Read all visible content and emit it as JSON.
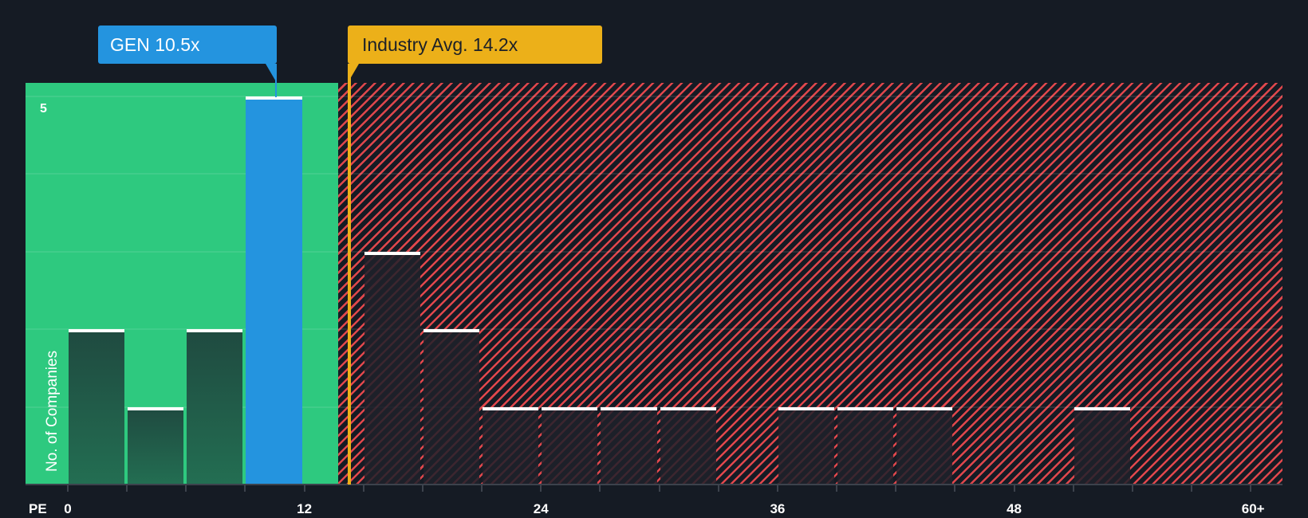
{
  "chart_data": {
    "type": "bar",
    "title": "",
    "xlabel": "PE",
    "ylabel": "No. of Companies",
    "x_tick_labels": [
      "0",
      "12",
      "24",
      "36",
      "48",
      "60+"
    ],
    "y_tick_labels": [
      "5"
    ],
    "xlim": [
      0,
      62
    ],
    "ylim": [
      0,
      5.15
    ],
    "grid": true,
    "bin_width": 3,
    "bins": [
      {
        "start": 0,
        "end": 3,
        "count": 2
      },
      {
        "start": 3,
        "end": 6,
        "count": 1
      },
      {
        "start": 6,
        "end": 9,
        "count": 2
      },
      {
        "start": 9,
        "end": 12,
        "count": 5,
        "highlight": true
      },
      {
        "start": 15,
        "end": 18,
        "count": 3
      },
      {
        "start": 18,
        "end": 21,
        "count": 2
      },
      {
        "start": 21,
        "end": 24,
        "count": 1
      },
      {
        "start": 24,
        "end": 27,
        "count": 1
      },
      {
        "start": 27,
        "end": 30,
        "count": 1
      },
      {
        "start": 30,
        "end": 33,
        "count": 1
      },
      {
        "start": 36,
        "end": 39,
        "count": 1
      },
      {
        "start": 39,
        "end": 42,
        "count": 1
      },
      {
        "start": 42,
        "end": 45,
        "count": 1
      },
      {
        "start": 51,
        "end": 54,
        "count": 1
      }
    ],
    "annotations": [
      {
        "label": "GEN 10.5x",
        "value": 10.5,
        "color": "#2494df"
      },
      {
        "label": "Industry Avg. 14.2x",
        "value": 14.2,
        "color": "#ecb019"
      }
    ],
    "zones": [
      {
        "name": "undervalued",
        "from": 0,
        "to": 13.7,
        "color": "#2ec97f"
      },
      {
        "name": "overvalued",
        "from": 13.7,
        "to": 62,
        "color": "#e0474c"
      }
    ]
  },
  "labels": {
    "gen_callout": "GEN 10.5x",
    "industry_callout": "Industry Avg. 14.2x",
    "pe_axis": "PE",
    "y_axis_title": "No. of Companies",
    "y_max_tick": "5",
    "x_ticks": [
      "0",
      "12",
      "24",
      "36",
      "48",
      "60+"
    ]
  },
  "colors": {
    "background": "#151b24",
    "green_zone": "#2ec97f",
    "red_hatch": "#e0474c",
    "highlight_bar": "#2494df",
    "industry_line": "#ecb019"
  }
}
